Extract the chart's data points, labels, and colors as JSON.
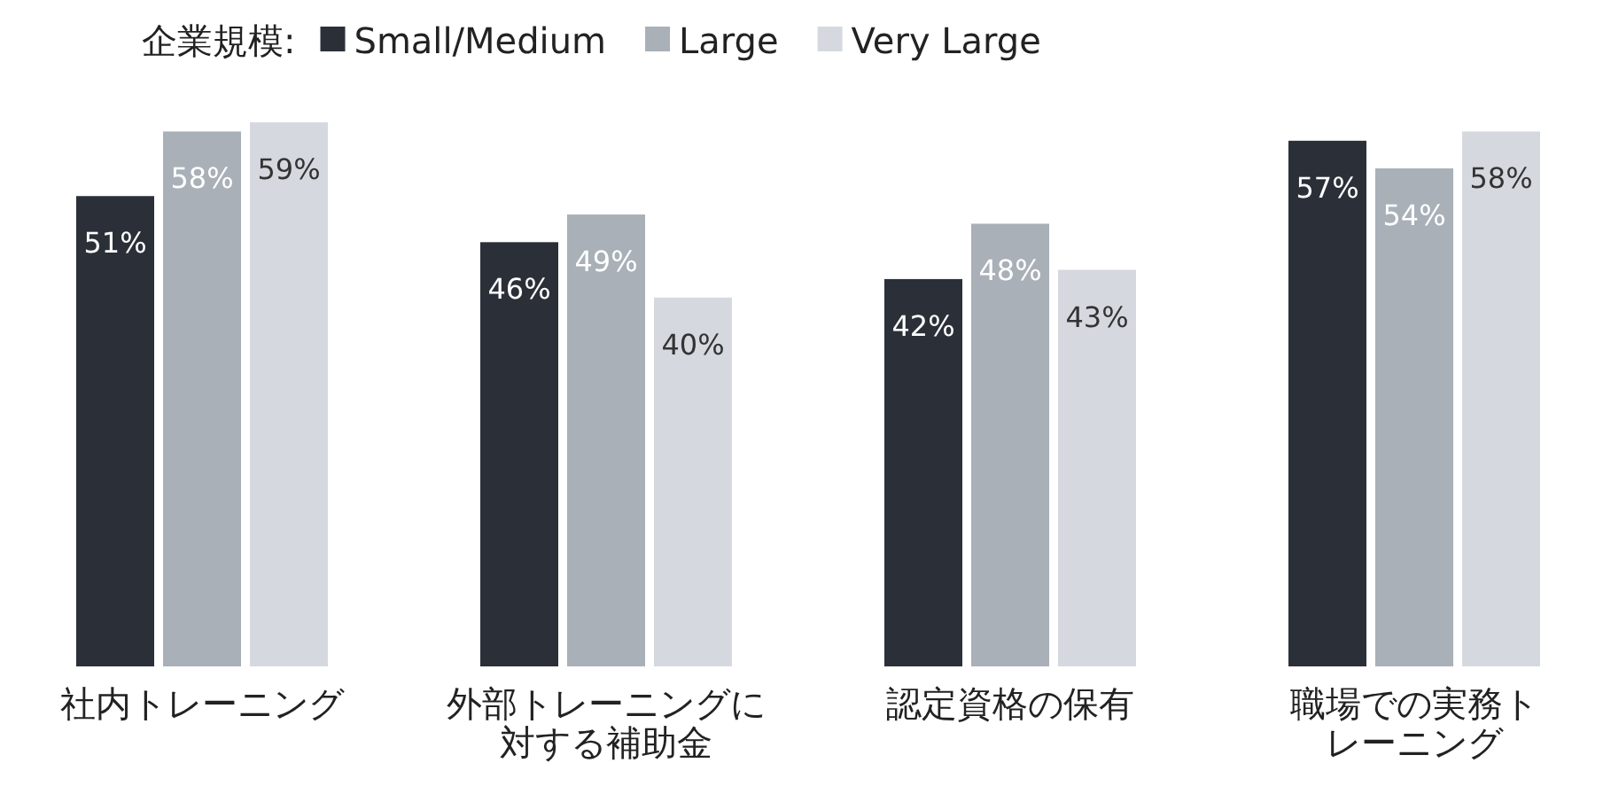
{
  "chart_data": {
    "type": "bar",
    "legend_title": "企業規模:",
    "legend": "top",
    "categories": [
      "社内トレーニング",
      "外部トレーニングに対する補助金",
      "認定資格の保有",
      "職場での実務トレーニング"
    ],
    "series": [
      {
        "name": "Small/Medium",
        "color": "#2b3038",
        "values": [
          51,
          46,
          42,
          57
        ],
        "value_labels": [
          "51%",
          "46%",
          "42%",
          "57%"
        ]
      },
      {
        "name": "Large",
        "color": "#a9b0b8",
        "values": [
          58,
          49,
          48,
          54
        ],
        "value_labels": [
          "58%",
          "49%",
          "48%",
          "54%"
        ]
      },
      {
        "name": "Very Large",
        "color": "#d5d9df",
        "values": [
          59,
          40,
          43,
          58
        ],
        "value_labels": [
          "59%",
          "40%",
          "43%",
          "58%"
        ]
      }
    ]
  }
}
